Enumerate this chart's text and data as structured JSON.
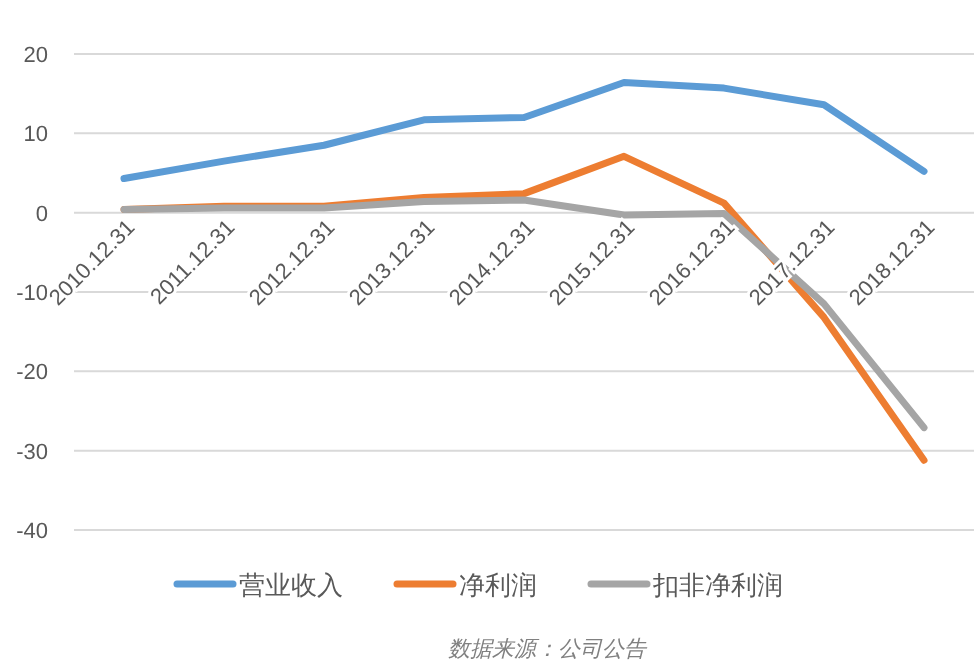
{
  "chart_data": {
    "type": "line",
    "categories": [
      "2010.12.31",
      "2011.12.31",
      "2012.12.31",
      "2013.12.31",
      "2014.12.31",
      "2015.12.31",
      "2016.12.31",
      "2017.12.31",
      "2018.12.31"
    ],
    "series": [
      {
        "name": "营业收入",
        "color": "#5b9bd5",
        "values": [
          4.3,
          6.5,
          8.5,
          11.7,
          12.0,
          16.4,
          15.7,
          13.6,
          5.2
        ]
      },
      {
        "name": "净利润",
        "color": "#ed7d31",
        "values": [
          0.4,
          0.8,
          0.8,
          1.9,
          2.4,
          7.1,
          1.2,
          -13.2,
          -31.2
        ]
      },
      {
        "name": "扣非净利润",
        "color": "#a5a5a5",
        "values": [
          0.4,
          0.6,
          0.6,
          1.4,
          1.6,
          -0.3,
          -0.1,
          -11.5,
          -27.1
        ]
      }
    ],
    "ylim": [
      -40,
      20
    ],
    "yticks": [
      -40,
      -30,
      -20,
      -10,
      0,
      10,
      20
    ],
    "grid": "y",
    "legend": "bottom",
    "annotations": [
      "数据来源：公司公告"
    ]
  }
}
